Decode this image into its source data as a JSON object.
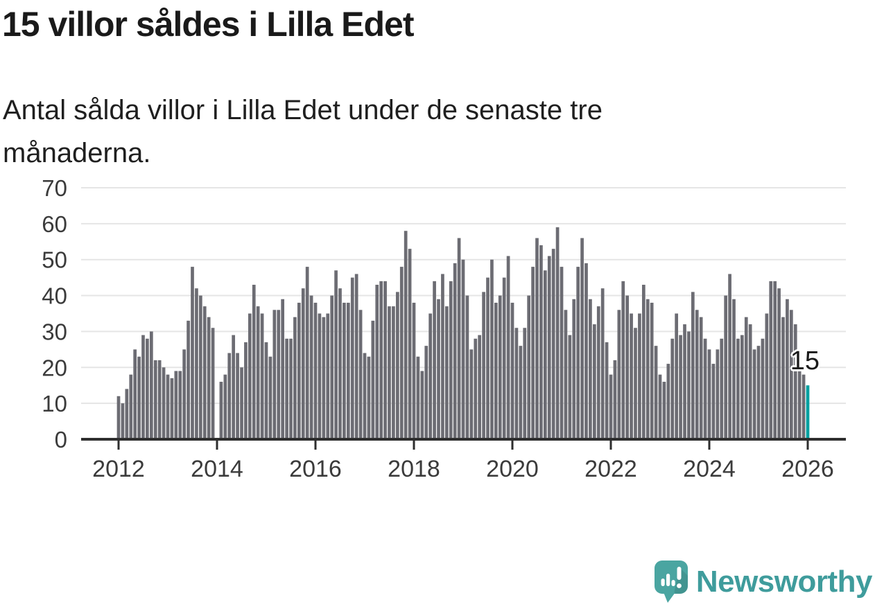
{
  "header": {
    "title": "15 villor såldes i Lilla Edet",
    "subtitle_lines": [
      "Antal sålda villor i Lilla Edet under de senaste tre",
      "månaderna."
    ]
  },
  "footer": {
    "logo_text": "Newsworthy"
  },
  "chart_data": {
    "type": "bar",
    "title": "15 villor såldes i Lilla Edet",
    "subtitle": "Antal sålda villor i Lilla Edet under de senaste tre månaderna.",
    "x_monthly_start": "2012-01",
    "x_monthly_end": "2026-01",
    "values": [
      12,
      10,
      14,
      18,
      25,
      23,
      29,
      28,
      30,
      22,
      22,
      20,
      18,
      17,
      19,
      19,
      25,
      33,
      48,
      42,
      40,
      37,
      34,
      31,
      0,
      16,
      18,
      24,
      29,
      24,
      20,
      27,
      35,
      43,
      37,
      35,
      27,
      23,
      36,
      36,
      39,
      28,
      28,
      34,
      38,
      42,
      48,
      40,
      38,
      35,
      34,
      35,
      40,
      47,
      42,
      38,
      38,
      45,
      46,
      36,
      24,
      23,
      33,
      43,
      44,
      44,
      37,
      37,
      41,
      48,
      58,
      53,
      38,
      23,
      19,
      26,
      35,
      44,
      39,
      46,
      37,
      44,
      49,
      56,
      50,
      40,
      25,
      28,
      29,
      41,
      45,
      50,
      38,
      40,
      45,
      51,
      38,
      31,
      26,
      31,
      40,
      48,
      56,
      54,
      47,
      51,
      53,
      59,
      48,
      36,
      29,
      39,
      48,
      56,
      49,
      39,
      32,
      37,
      42,
      27,
      18,
      22,
      36,
      44,
      40,
      35,
      31,
      35,
      43,
      39,
      38,
      26,
      18,
      16,
      21,
      28,
      35,
      29,
      32,
      30,
      41,
      36,
      34,
      28,
      25,
      21,
      25,
      28,
      40,
      46,
      39,
      28,
      29,
      34,
      32,
      25,
      26,
      28,
      35,
      44,
      44,
      42,
      34,
      39,
      36,
      32,
      24,
      18,
      15
    ],
    "highlight_index": 168,
    "highlight_label": "15",
    "ylim": [
      0,
      70
    ],
    "y_ticks": [
      0,
      10,
      20,
      30,
      40,
      50,
      60,
      70
    ],
    "x_tick_labels": [
      "2012",
      "2014",
      "2016",
      "2018",
      "2020",
      "2022",
      "2024",
      "2026"
    ],
    "x_tick_indices": [
      0,
      24,
      48,
      72,
      96,
      120,
      144,
      168
    ],
    "grid": "horizontal",
    "legend": "none",
    "bar_color": "#6c6c73",
    "highlight_color": "#00a0a0",
    "axis_color": "#2e2e2e",
    "gridline_color": "#e5e5e5",
    "label_color": "#3b3b3b"
  }
}
